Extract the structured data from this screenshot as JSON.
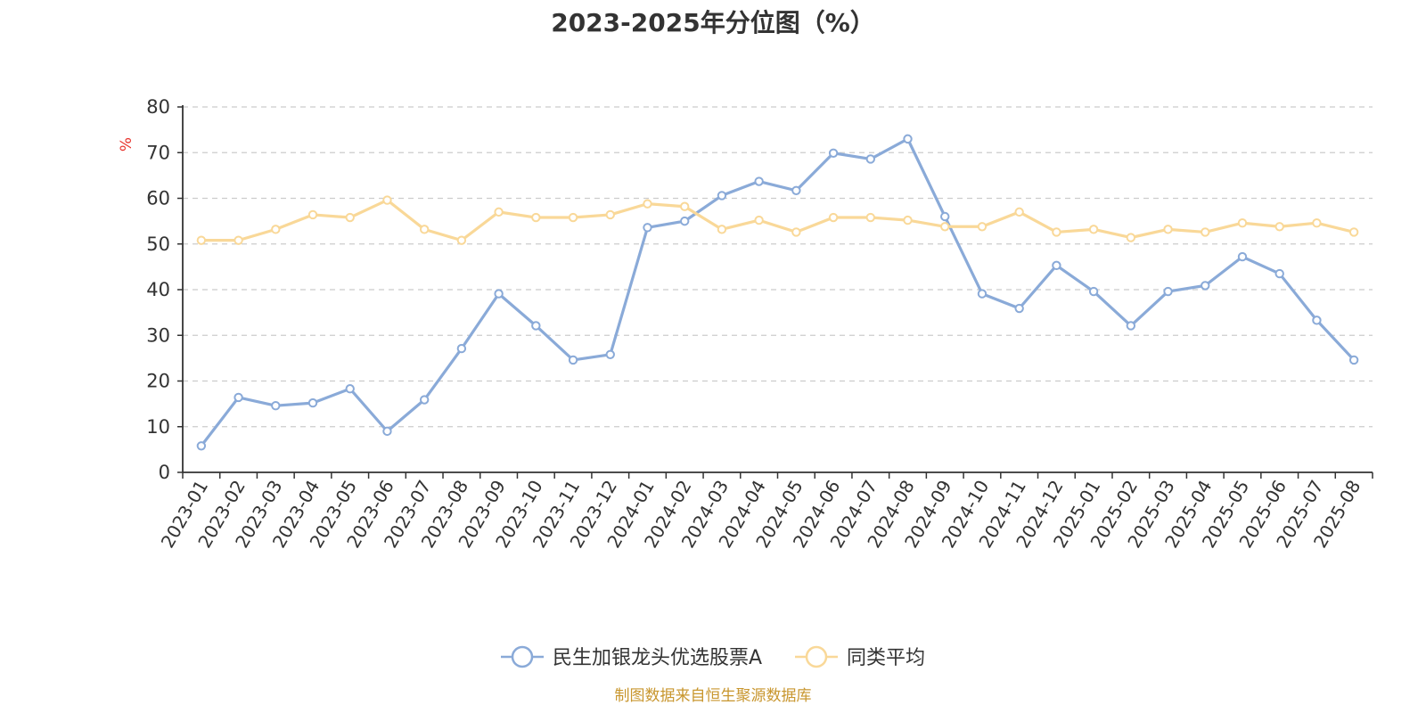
{
  "chart_data": {
    "type": "line",
    "title": "2023-2025年分位图（%）",
    "ylabel": "%",
    "ylim": [
      0,
      80
    ],
    "yticks": [
      0,
      10,
      20,
      30,
      40,
      50,
      60,
      70,
      80
    ],
    "grid": true,
    "legend_position": "bottom",
    "x": [
      "2023-01",
      "2023-02",
      "2023-03",
      "2023-04",
      "2023-05",
      "2023-06",
      "2023-07",
      "2023-08",
      "2023-09",
      "2023-10",
      "2023-11",
      "2023-12",
      "2024-01",
      "2024-02",
      "2024-03",
      "2024-04",
      "2024-05",
      "2024-06",
      "2024-07",
      "2024-08",
      "2024-09",
      "2024-10",
      "2024-11",
      "2024-12",
      "2025-01",
      "2025-02",
      "2025-03",
      "2025-04",
      "2025-05",
      "2025-06",
      "2025-07",
      "2025-08"
    ],
    "series": [
      {
        "name": "民生加银龙头优选股票A",
        "color": "#8aaad8",
        "values": [
          5.8,
          16.4,
          14.6,
          15.2,
          18.3,
          9.0,
          15.9,
          27.1,
          39.1,
          32.1,
          24.6,
          25.8,
          53.6,
          55.0,
          60.6,
          63.7,
          61.7,
          69.9,
          68.6,
          73.0,
          56.0,
          39.1,
          35.9,
          45.3,
          39.6,
          32.1,
          39.6,
          40.9,
          47.2,
          43.5,
          33.3,
          24.6
        ]
      },
      {
        "name": "同类平均",
        "color": "#f9d898",
        "values": [
          50.8,
          50.8,
          53.2,
          56.4,
          55.8,
          59.6,
          53.2,
          50.8,
          57.0,
          55.8,
          55.8,
          56.4,
          58.8,
          58.2,
          53.2,
          55.2,
          52.6,
          55.8,
          55.8,
          55.2,
          53.8,
          53.8,
          57.0,
          52.6,
          53.2,
          51.4,
          53.2,
          52.6,
          54.6,
          53.8,
          54.6,
          52.6
        ]
      }
    ]
  },
  "footer": {
    "source": "制图数据来自恒生聚源数据库"
  }
}
